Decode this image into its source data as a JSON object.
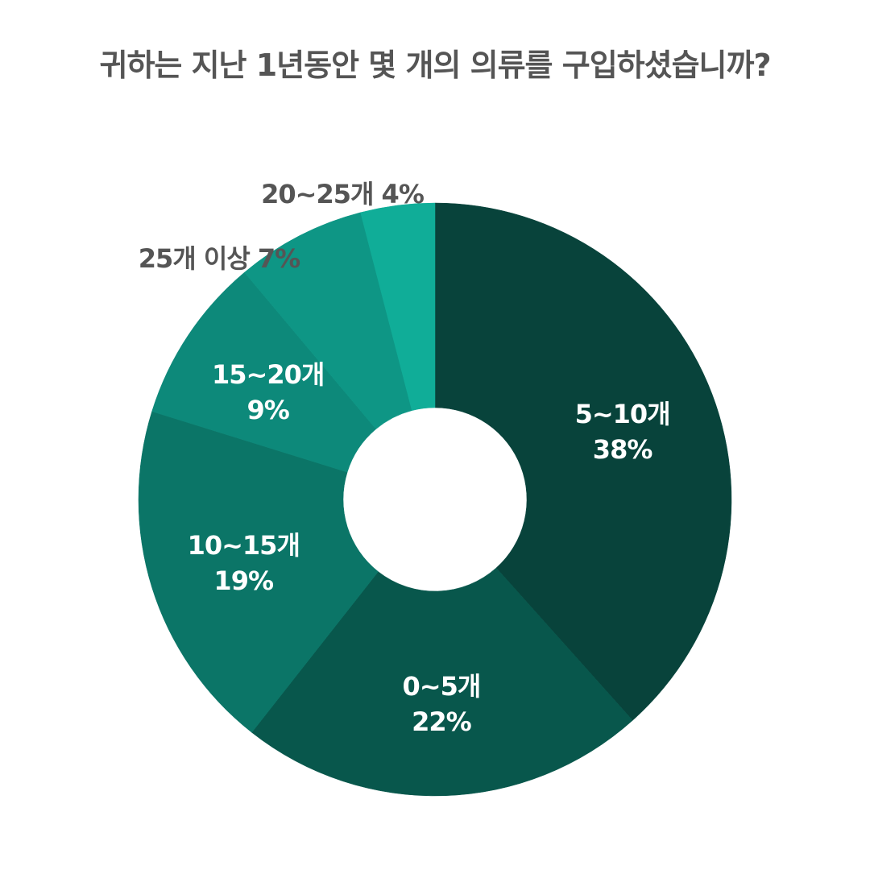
{
  "chart_data": {
    "type": "pie",
    "title": "귀하는 지난 1년동안 몇 개의 의류를 구입하셨습니까?",
    "donut": true,
    "start": "top, clockwise",
    "slices": [
      {
        "label": "5~10개",
        "value": 38,
        "value_label": "38%",
        "color": "#08433b",
        "label_position": "inside"
      },
      {
        "label": "0~5개",
        "value": 22,
        "value_label": "22%",
        "color": "#08574c",
        "label_position": "inside"
      },
      {
        "label": "10~15개",
        "value": 19,
        "value_label": "19%",
        "color": "#0b7567",
        "label_position": "inside"
      },
      {
        "label": "15~20개",
        "value": 9,
        "value_label": "9%",
        "color": "#0d897a",
        "label_position": "inside"
      },
      {
        "label": "25개 이상",
        "value": 7,
        "value_label": "7%",
        "color": "#0e9685",
        "label_position": "outside"
      },
      {
        "label": "20~25개",
        "value": 4,
        "value_label": "4%",
        "color": "#10ad98",
        "label_position": "outside"
      }
    ]
  }
}
